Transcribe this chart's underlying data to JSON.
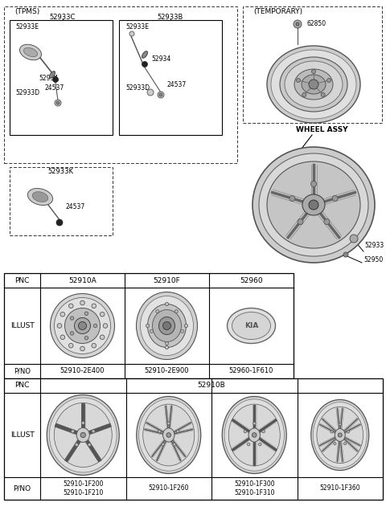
{
  "bg_color": "#ffffff",
  "tpms_label": "(TPMS)",
  "temporary_label": "(TEMPORARY)",
  "wheel_assy_label": "WHEEL ASSY",
  "tpms_box1_label": "52933C",
  "tpms_box2_label": "52933B",
  "tpms_k_label": "52933K",
  "temp_part": "62850",
  "wheel_part1": "52933",
  "wheel_part2": "52950",
  "table1_headers": [
    "PNC",
    "52910A",
    "52910F",
    "52960"
  ],
  "table1_pno": [
    "P/NO",
    "52910-2E400",
    "52910-2E900",
    "52960-1F610"
  ],
  "table2_pnc": "52910B",
  "table2_row3_col1": "52910-1F200\n52910-1F210",
  "table2_row3_col2": "52910-1F260",
  "table2_row3_col3": "52910-1F300\n52910-1F310",
  "table2_row3_col4": "52910-1F360"
}
